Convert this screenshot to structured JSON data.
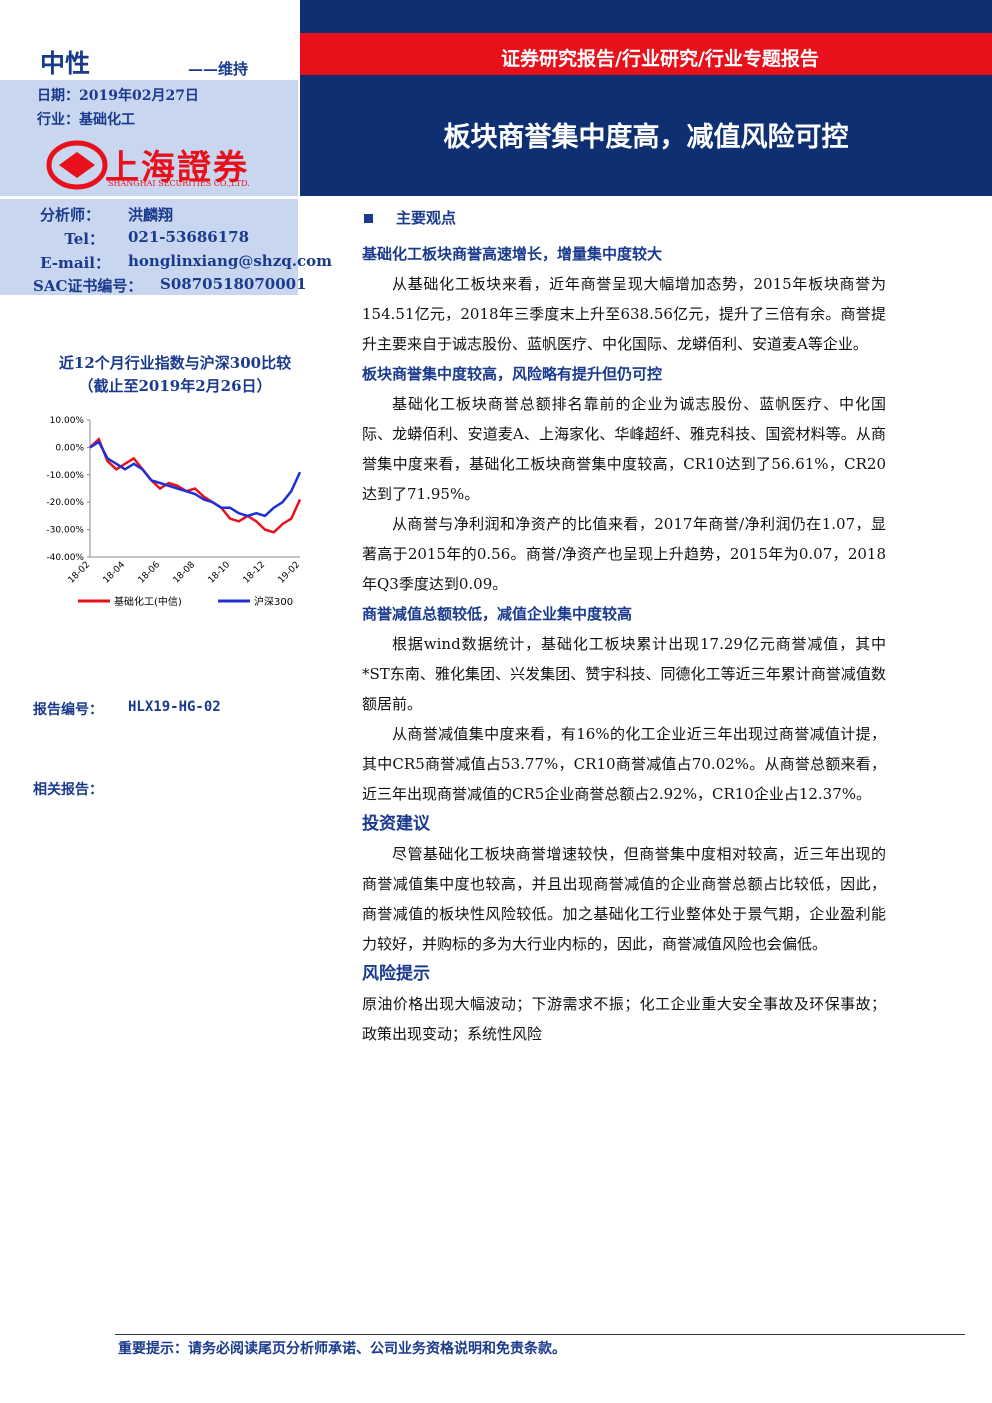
{
  "header": {
    "rating": "中性",
    "rating_status": "——维持",
    "report_type": "证券研究报告/行业研究/行业专题报告",
    "title": "板块商誉集中度高，减值风险可控"
  },
  "sidebar": {
    "date": "日期：2019年02月27日",
    "industry": "行业：基础化工",
    "logo_text": "上海證券",
    "logo_english": "SHANGHAI SECURITIES CO.,LTD.",
    "analyst_label": "分析师：",
    "analyst": "洪麟翔",
    "tel_label": "Tel：",
    "tel": "021-53686178",
    "email_label": "E-mail：",
    "email": "honglinxiang@shzq.com",
    "sac_label": "SAC证书编号：",
    "sac": "S0870518070001",
    "chart_caption_1": "近12个月行业指数与沪深300比较",
    "chart_caption_2": "（截止至2019年2月26日）",
    "report_no_label": "报告编号：",
    "report_no": "HLX19-HG-02",
    "related": "相关报告："
  },
  "chart_data": {
    "type": "line",
    "categories": [
      "18-02",
      null,
      null,
      null,
      "18-04",
      null,
      null,
      null,
      "18-06",
      null,
      null,
      null,
      "18-08",
      null,
      null,
      null,
      "18-10",
      null,
      null,
      null,
      "18-12",
      null,
      null,
      null,
      "19-02"
    ],
    "series": [
      {
        "name": "基础化工(中信)",
        "color": "#e8101a",
        "values": [
          0,
          3,
          -5,
          -8,
          -6,
          -4,
          -8,
          -12,
          -15,
          -13,
          -14,
          -16,
          -15,
          -18,
          -20,
          -22,
          -26,
          -27,
          -25,
          -27,
          -30,
          -31,
          -28,
          -26,
          -19
        ]
      },
      {
        "name": "沪深300",
        "color": "#1f2fd6",
        "values": [
          0,
          2,
          -4,
          -6,
          -8,
          -6,
          -8,
          -12,
          -13,
          -14,
          -15,
          -16,
          -17,
          -19,
          -20,
          -22,
          -22,
          -24,
          -25,
          -24,
          -25,
          -22,
          -20,
          -16,
          -9
        ]
      }
    ],
    "ylim": [
      -40,
      10
    ],
    "yticks": [
      {
        "value": 10,
        "label": "10.00%"
      },
      {
        "value": 0,
        "label": "0.00%"
      },
      {
        "value": -10,
        "label": "-10.00%"
      },
      {
        "value": -20,
        "label": "-20.00%"
      },
      {
        "value": -30,
        "label": "-30.00%"
      },
      {
        "value": -40,
        "label": "-40.00%"
      }
    ]
  },
  "body": [
    {
      "kind": "section",
      "text": "主要观点"
    },
    {
      "kind": "subhead",
      "text": "基础化工板块商誉高速增长，增量集中度较大"
    },
    {
      "kind": "para",
      "text": "从基础化工板块来看，近年商誉呈现大幅增加态势，2015年板块商誉为154.51亿元，2018年三季度末上升至638.56亿元，提升了三倍有余。商誉提升主要来自于诚志股份、蓝帆医疗、中化国际、龙蟒佰利、安道麦A等企业。"
    },
    {
      "kind": "subhead",
      "text": "板块商誉集中度较高，风险略有提升但仍可控"
    },
    {
      "kind": "para",
      "text": "基础化工板块商誉总额排名靠前的企业为诚志股份、蓝帆医疗、中化国际、龙蟒佰利、安道麦A、上海家化、华峰超纤、雅克科技、国瓷材料等。从商誉集中度来看，基础化工板块商誉集中度较高，CR10达到了56.61%，CR20达到了71.95%。"
    },
    {
      "kind": "para",
      "text": "从商誉与净利润和净资产的比值来看，2017年商誉/净利润仍在1.07，显著高于2015年的0.56。商誉/净资产也呈现上升趋势，2015年为0.07，2018年Q3季度达到0.09。"
    },
    {
      "kind": "subhead",
      "text": "商誉减值总额较低，减值企业集中度较高"
    },
    {
      "kind": "para",
      "text": "根据wind数据统计，基础化工板块累计出现17.29亿元商誉减值，其中*ST东南、雅化集团、兴发集团、赞宇科技、同德化工等近三年累计商誉减值数额居前。"
    },
    {
      "kind": "para",
      "text": "从商誉减值集中度来看，有16%的化工企业近三年出现过商誉减值计提，其中CR5商誉减值占53.77%，CR10商誉减值占70.02%。从商誉总额来看，近三年出现商誉减值的CR5企业商誉总额占2.92%，CR10企业占12.37%。"
    },
    {
      "kind": "heading",
      "text": "投资建议"
    },
    {
      "kind": "para",
      "text": "尽管基础化工板块商誉增速较快，但商誉集中度相对较高，近三年出现的商誉减值集中度也较高，并且出现商誉减值的企业商誉总额占比较低，因此，商誉减值的板块性风险较低。加之基础化工行业整体处于景气期，企业盈利能力较好，并购标的多为大行业内标的，因此，商誉减值风险也会偏低。"
    },
    {
      "kind": "heading",
      "text": "风险提示"
    },
    {
      "kind": "plain",
      "text": "原油价格出现大幅波动；下游需求不振；化工企业重大安全事故及环保事故；政策出现变动；系统性风险"
    }
  ],
  "footer": "重要提示：请务必阅读尾页分析师承诺、公司业务资格说明和免责条款。"
}
